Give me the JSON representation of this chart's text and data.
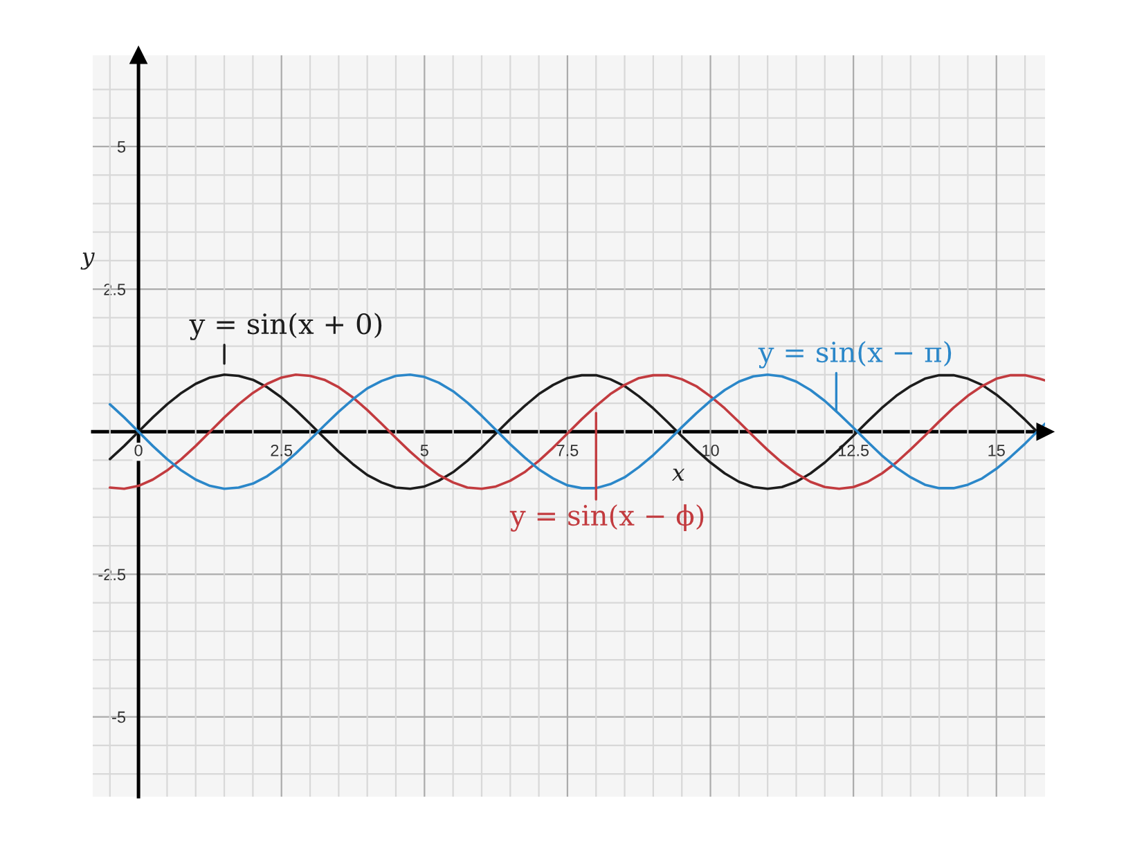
{
  "chart_data": {
    "type": "line",
    "xlabel": "x",
    "ylabel": "y",
    "xlim": [
      -0.8,
      15.85
    ],
    "ylim": [
      -6.4,
      6.6
    ],
    "xticks": [
      {
        "value": -0.5,
        "label": null
      },
      0,
      {
        "value": 0.5,
        "label": null
      },
      {
        "value": 1,
        "label": null
      },
      {
        "value": 1.5,
        "label": null
      },
      {
        "value": 2,
        "label": null
      },
      2.5,
      {
        "value": 3,
        "label": null
      },
      {
        "value": 3.5,
        "label": null
      },
      {
        "value": 4,
        "label": null
      },
      {
        "value": 4.5,
        "label": null
      },
      5,
      {
        "value": 5.5,
        "label": null
      },
      {
        "value": 6,
        "label": null
      },
      {
        "value": 6.5,
        "label": null
      },
      {
        "value": 7,
        "label": null
      },
      7.5,
      {
        "value": 8,
        "label": null
      },
      {
        "value": 8.5,
        "label": null
      },
      {
        "value": 9,
        "label": null
      },
      {
        "value": 9.5,
        "label": null
      },
      10,
      {
        "value": 10.5,
        "label": null
      },
      {
        "value": 11,
        "label": null
      },
      {
        "value": 11.5,
        "label": null
      },
      {
        "value": 12,
        "label": null
      },
      12.5,
      {
        "value": 13,
        "label": null
      },
      {
        "value": 13.5,
        "label": null
      },
      {
        "value": 14,
        "label": null
      },
      {
        "value": 14.5,
        "label": null
      },
      15,
      {
        "value": 15.5,
        "label": null
      }
    ],
    "yticks": [
      {
        "value": -6,
        "label": null
      },
      {
        "value": -5.5,
        "label": null
      },
      -5,
      {
        "value": -4.5,
        "label": null
      },
      {
        "value": -4,
        "label": null
      },
      {
        "value": -3.5,
        "label": null
      },
      {
        "value": -3,
        "label": null
      },
      -2.5,
      {
        "value": -2,
        "label": null
      },
      {
        "value": -1.5,
        "label": null
      },
      {
        "value": -1,
        "label": null
      },
      {
        "value": -0.5,
        "label": null
      },
      {
        "value": 0,
        "label": null
      },
      {
        "value": 0.5,
        "label": null
      },
      {
        "value": 1,
        "label": null
      },
      {
        "value": 1.5,
        "label": null
      },
      {
        "value": 2,
        "label": null
      },
      2.5,
      {
        "value": 3,
        "label": null
      },
      {
        "value": 3.5,
        "label": null
      },
      {
        "value": 4,
        "label": null
      },
      {
        "value": 4.5,
        "label": null
      },
      5,
      {
        "value": 5.5,
        "label": null
      },
      {
        "value": 6,
        "label": null
      }
    ],
    "grid": true,
    "line_style": "solid",
    "series": [
      {
        "color": "#1c1c1c",
        "x": [
          -0.5,
          -0.25,
          0,
          0.25,
          0.5,
          0.75,
          1,
          1.25,
          1.5,
          1.75,
          2,
          2.25,
          2.5,
          2.75,
          3,
          3.25,
          3.5,
          3.75,
          4,
          4.25,
          4.5,
          4.75,
          5,
          5.25,
          5.5,
          5.75,
          6,
          6.25,
          6.5,
          6.75,
          7,
          7.25,
          7.5,
          7.75,
          8,
          8.25,
          8.5,
          8.75,
          9,
          9.25,
          9.5,
          9.75,
          10,
          10.25,
          10.5,
          10.75,
          11,
          11.25,
          11.5,
          11.75,
          12,
          12.25,
          12.5,
          12.75,
          13,
          13.25,
          13.5,
          13.75,
          14,
          14.25,
          14.5,
          14.75,
          15,
          15.25,
          15.5,
          15.75
        ],
        "values": [
          -0.48,
          -0.25,
          0,
          0.25,
          0.48,
          0.68,
          0.84,
          0.95,
          1.0,
          0.98,
          0.91,
          0.78,
          0.6,
          0.38,
          0.14,
          -0.11,
          -0.35,
          -0.57,
          -0.76,
          -0.89,
          -0.98,
          -1.0,
          -0.96,
          -0.86,
          -0.71,
          -0.51,
          -0.28,
          -0.03,
          0.22,
          0.45,
          0.66,
          0.82,
          0.94,
          0.99,
          0.99,
          0.92,
          0.8,
          0.62,
          0.41,
          0.17,
          -0.08,
          -0.32,
          -0.54,
          -0.73,
          -0.88,
          -0.97,
          -1.0,
          -0.97,
          -0.88,
          -0.73,
          -0.54,
          -0.31,
          -0.07,
          0.18,
          0.42,
          0.63,
          0.8,
          0.93,
          0.99,
          0.99,
          0.93,
          0.82,
          0.65,
          0.44,
          0.21,
          -0.04
        ]
      },
      {
        "color": "#c23b3f",
        "x": [
          -0.5,
          -0.25,
          0,
          0.25,
          0.5,
          0.75,
          1,
          1.25,
          1.5,
          1.75,
          2,
          2.25,
          2.5,
          2.75,
          3,
          3.25,
          3.5,
          3.75,
          4,
          4.25,
          4.5,
          4.75,
          5,
          5.25,
          5.5,
          5.75,
          6,
          6.25,
          6.5,
          6.75,
          7,
          7.25,
          7.5,
          7.75,
          8,
          8.25,
          8.5,
          8.75,
          9,
          9.25,
          9.5,
          9.75,
          10,
          10.25,
          10.5,
          10.75,
          11,
          11.25,
          11.5,
          11.75,
          12,
          12.25,
          12.5,
          12.75,
          13,
          13.25,
          13.5,
          13.75,
          14,
          14.25,
          14.5,
          14.75,
          15,
          15.25,
          15.5,
          15.75,
          15.85
        ],
        "values": [
          -0.98,
          -1.0,
          -0.95,
          -0.84,
          -0.68,
          -0.48,
          -0.25,
          0,
          0.25,
          0.48,
          0.68,
          0.84,
          0.95,
          1.0,
          0.98,
          0.91,
          0.78,
          0.6,
          0.38,
          0.14,
          -0.11,
          -0.35,
          -0.57,
          -0.76,
          -0.89,
          -0.98,
          -1.0,
          -0.96,
          -0.86,
          -0.71,
          -0.51,
          -0.28,
          -0.03,
          0.22,
          0.45,
          0.66,
          0.82,
          0.94,
          0.99,
          0.99,
          0.92,
          0.8,
          0.62,
          0.41,
          0.17,
          -0.08,
          -0.32,
          -0.54,
          -0.73,
          -0.88,
          -0.97,
          -1.0,
          -0.97,
          -0.88,
          -0.73,
          -0.54,
          -0.31,
          -0.07,
          0.18,
          0.42,
          0.63,
          0.8,
          0.93,
          0.99,
          0.99,
          0.93,
          0.9
        ]
      },
      {
        "color": "#2b87c9",
        "x": [
          -0.5,
          -0.25,
          0,
          0.25,
          0.5,
          0.75,
          1,
          1.25,
          1.5,
          1.75,
          2,
          2.25,
          2.5,
          2.75,
          3,
          3.25,
          3.5,
          3.75,
          4,
          4.25,
          4.5,
          4.75,
          5,
          5.25,
          5.5,
          5.75,
          6,
          6.25,
          6.5,
          6.75,
          7,
          7.25,
          7.5,
          7.75,
          8,
          8.25,
          8.5,
          8.75,
          9,
          9.25,
          9.5,
          9.75,
          10,
          10.25,
          10.5,
          10.75,
          11,
          11.25,
          11.5,
          11.75,
          12,
          12.25,
          12.5,
          12.75,
          13,
          13.25,
          13.5,
          13.75,
          14,
          14.25,
          14.5,
          14.75,
          15,
          15.25,
          15.5,
          15.75,
          15.85
        ],
        "values": [
          0.48,
          0.25,
          0,
          -0.25,
          -0.48,
          -0.68,
          -0.84,
          -0.95,
          -1.0,
          -0.98,
          -0.91,
          -0.78,
          -0.6,
          -0.38,
          -0.14,
          0.11,
          0.35,
          0.57,
          0.76,
          0.89,
          0.98,
          1.0,
          0.96,
          0.86,
          0.71,
          0.51,
          0.28,
          0.03,
          -0.22,
          -0.45,
          -0.66,
          -0.82,
          -0.94,
          -0.99,
          -0.99,
          -0.92,
          -0.8,
          -0.62,
          -0.41,
          -0.17,
          0.08,
          0.32,
          0.54,
          0.73,
          0.88,
          0.97,
          1.0,
          0.97,
          0.88,
          0.73,
          0.54,
          0.31,
          0.07,
          -0.18,
          -0.42,
          -0.63,
          -0.8,
          -0.93,
          -0.99,
          -0.99,
          -0.93,
          -0.82,
          -0.65,
          -0.44,
          -0.21,
          0.04,
          0.14
        ]
      }
    ],
    "annotations": [
      {
        "text": "y = sin(x + 0)",
        "x": 1.5,
        "y": 1.0
      },
      {
        "text": "y = sin(x − π)",
        "x": 12.2,
        "y": 0.36
      },
      {
        "text": "y = sin(x − ϕ)",
        "x": 8.0,
        "y": 0.45
      }
    ]
  }
}
